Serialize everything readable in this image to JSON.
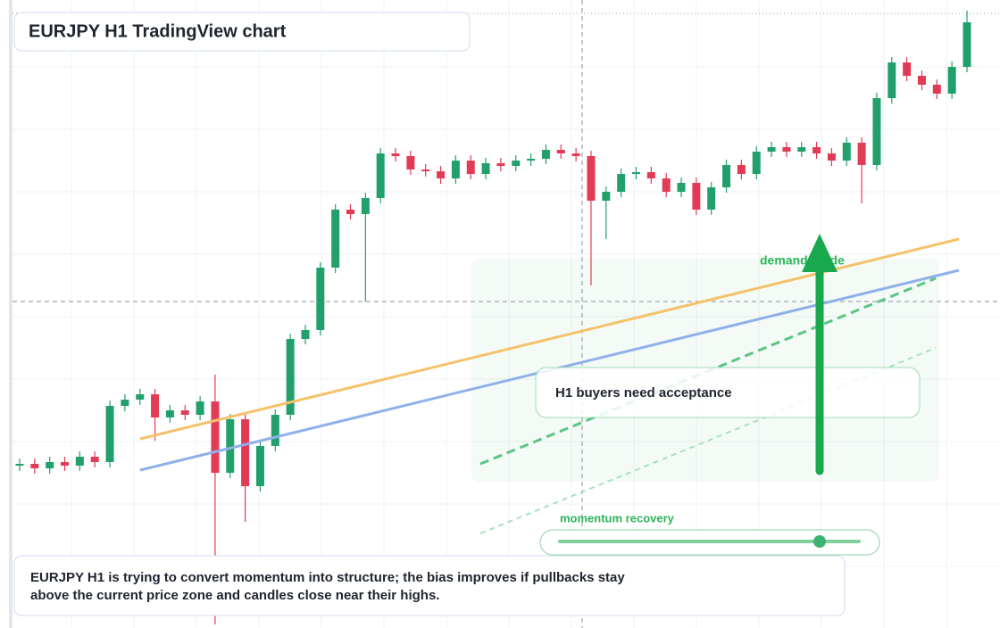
{
  "chart_data": {
    "type": "candlestick",
    "title": "EURJPY H1 TradingView chart",
    "annotations": {
      "zone": "demand guide",
      "callout": "H1 buyers need acceptance",
      "slider": "momentum recovery"
    },
    "note": [
      "EURJPY H1 is trying to convert momentum into structure; the bias improves if pullbacks stay",
      "above the current price zone and candles close near their highs."
    ],
    "up_color": "#22a06b",
    "down_color": "#e23b55",
    "ylim": [
      0,
      704
    ],
    "open": [
      182,
      184,
      179,
      186,
      182,
      192,
      186,
      249,
      256,
      262,
      236,
      244,
      239,
      254,
      174,
      234,
      159,
      204,
      239,
      324,
      334,
      404,
      469,
      464,
      482,
      532,
      529,
      514,
      512,
      504,
      524,
      509,
      521,
      518,
      524,
      526,
      536,
      532,
      529,
      479,
      489,
      509,
      511,
      504,
      489,
      499,
      469,
      494,
      519,
      509,
      534,
      539,
      534,
      539,
      532,
      524,
      544,
      519,
      594,
      634,
      619,
      609,
      599,
      629
    ],
    "high": [
      190,
      190,
      192,
      192,
      198,
      198,
      255,
      262,
      268,
      268,
      250,
      250,
      260,
      284,
      240,
      240,
      210,
      245,
      330,
      340,
      410,
      475,
      475,
      488,
      538,
      538,
      535,
      520,
      518,
      530,
      530,
      527,
      527,
      530,
      532,
      542,
      542,
      538,
      535,
      495,
      515,
      517,
      517,
      510,
      505,
      505,
      500,
      525,
      525,
      540,
      545,
      545,
      545,
      545,
      538,
      550,
      550,
      600,
      640,
      640,
      625,
      615,
      635,
      692
    ],
    "low": [
      176,
      173,
      173,
      176,
      176,
      180,
      180,
      243,
      250,
      210,
      230,
      233,
      233,
      4,
      168,
      119,
      153,
      198,
      233,
      318,
      328,
      398,
      458,
      366,
      476,
      523,
      508,
      506,
      498,
      498,
      503,
      503,
      512,
      512,
      518,
      520,
      526,
      523,
      384,
      436,
      483,
      503,
      498,
      483,
      483,
      463,
      463,
      488,
      503,
      503,
      528,
      528,
      528,
      526,
      518,
      518,
      476,
      513,
      588,
      613,
      603,
      593,
      593,
      623
    ],
    "close": [
      184,
      179,
      186,
      182,
      192,
      186,
      249,
      256,
      262,
      236,
      244,
      239,
      254,
      174,
      234,
      159,
      204,
      239,
      324,
      334,
      404,
      469,
      464,
      482,
      532,
      529,
      514,
      512,
      504,
      524,
      509,
      521,
      518,
      524,
      526,
      536,
      532,
      529,
      479,
      489,
      509,
      511,
      504,
      489,
      499,
      469,
      494,
      519,
      509,
      534,
      539,
      534,
      539,
      532,
      524,
      544,
      519,
      594,
      634,
      619,
      609,
      599,
      629,
      679
    ]
  }
}
